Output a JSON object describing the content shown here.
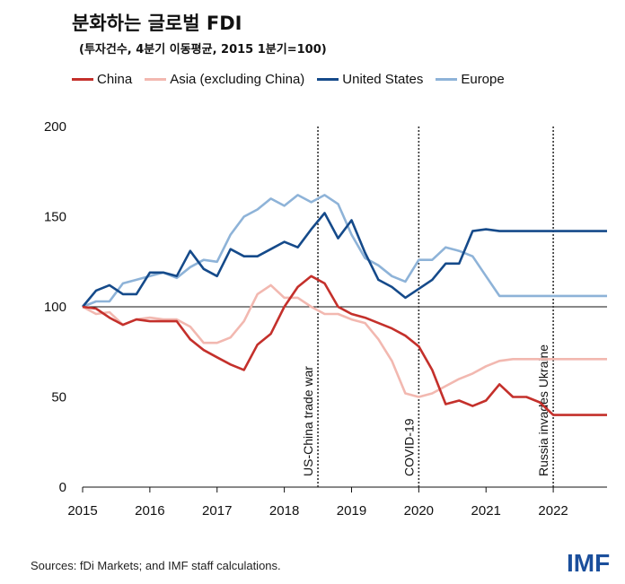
{
  "title": "분화하는 글로벌 FDI",
  "subtitle": "(투자건수, 4분기 이동평균, 2015 1분기=100)",
  "source": "Sources: fDi Markets; and IMF staff calculations.",
  "logo": "IMF",
  "colors": {
    "china": "#c4302b",
    "asia": "#f2b8b0",
    "us": "#154a8a",
    "europe": "#8eb3d8"
  },
  "chart_data": {
    "type": "line",
    "ylim": [
      0,
      200
    ],
    "yticks": [
      0,
      50,
      100,
      150,
      200
    ],
    "xlim": [
      2015,
      2022.8
    ],
    "xticks": [
      "2015",
      "2016",
      "2017",
      "2018",
      "2019",
      "2020",
      "2021",
      "2022"
    ],
    "reference_line": 100,
    "annotations": [
      {
        "x": 2018.5,
        "text": "US-China trade war"
      },
      {
        "x": 2020.0,
        "text": "COVID-19"
      },
      {
        "x": 2022.0,
        "text": "Russia invades Ukraine"
      }
    ],
    "x": [
      2015.0,
      2015.2,
      2015.4,
      2015.6,
      2015.8,
      2016.0,
      2016.2,
      2016.4,
      2016.6,
      2016.8,
      2017.0,
      2017.2,
      2017.4,
      2017.6,
      2017.8,
      2018.0,
      2018.2,
      2018.4,
      2018.6,
      2018.8,
      2019.0,
      2019.2,
      2019.4,
      2019.6,
      2019.8,
      2020.0,
      2020.2,
      2020.4,
      2020.6,
      2020.8,
      2021.0,
      2021.2,
      2021.4,
      2021.6,
      2021.8,
      2022.0,
      2022.2,
      2022.4,
      2022.6,
      2022.8
    ],
    "series": [
      {
        "name": "China",
        "values": [
          100,
          99,
          94,
          90,
          93,
          92,
          92,
          92,
          82,
          76,
          72,
          68,
          65,
          79,
          85,
          100,
          111,
          117,
          113,
          100,
          96,
          94,
          91,
          88,
          84,
          78,
          65,
          46,
          48,
          45,
          48,
          57,
          50,
          50,
          47,
          40,
          40,
          40,
          40,
          40
        ]
      },
      {
        "name": "Asia (excluding China)",
        "values": [
          100,
          96,
          97,
          90,
          93,
          94,
          93,
          93,
          89,
          80,
          80,
          83,
          92,
          107,
          112,
          105,
          105,
          100,
          96,
          96,
          93,
          91,
          82,
          70,
          52,
          50,
          52,
          56,
          60,
          63,
          67,
          70,
          71,
          71,
          71,
          71,
          71,
          71,
          71,
          71
        ]
      },
      {
        "name": "United States",
        "values": [
          100,
          109,
          112,
          107,
          107,
          119,
          119,
          117,
          131,
          121,
          117,
          132,
          128,
          128,
          132,
          136,
          133,
          143,
          152,
          138,
          148,
          130,
          115,
          111,
          105,
          110,
          115,
          124,
          124,
          142,
          143,
          142,
          142,
          142,
          142,
          142,
          142,
          142,
          142,
          142
        ]
      },
      {
        "name": "Europe",
        "values": [
          100,
          103,
          103,
          113,
          115,
          117,
          119,
          116,
          122,
          126,
          125,
          140,
          150,
          154,
          160,
          156,
          162,
          158,
          162,
          157,
          140,
          127,
          123,
          117,
          114,
          126,
          126,
          133,
          131,
          128,
          117,
          106,
          106,
          106,
          106,
          106,
          106,
          106,
          106,
          106
        ]
      }
    ]
  }
}
